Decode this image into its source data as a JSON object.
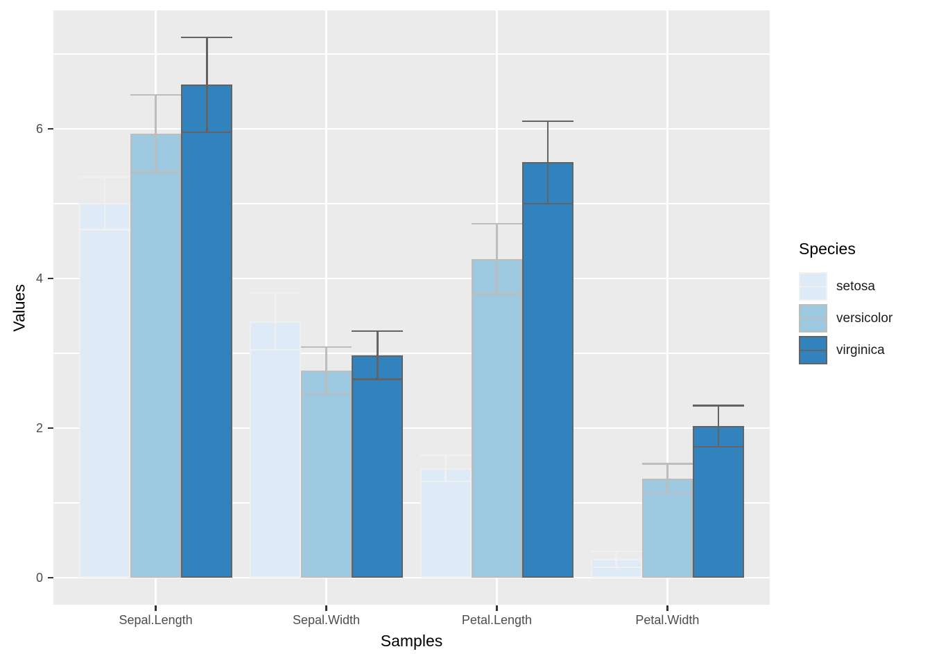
{
  "chart_data": {
    "type": "bar",
    "title": "",
    "xlabel": "Samples",
    "ylabel": "Values",
    "categories": [
      "Sepal.Length",
      "Sepal.Width",
      "Petal.Length",
      "Petal.Width"
    ],
    "series": [
      {
        "name": "setosa",
        "means": [
          5.006,
          3.428,
          1.462,
          0.246
        ],
        "sd": [
          0.352,
          0.379,
          0.174,
          0.105
        ],
        "fill": "#DEEBF7",
        "stroke": "#F0F0F0"
      },
      {
        "name": "versicolor",
        "means": [
          5.936,
          2.77,
          4.26,
          1.326
        ],
        "sd": [
          0.516,
          0.314,
          0.47,
          0.198
        ],
        "fill": "#9ECAE1",
        "stroke": "#BDBDBD"
      },
      {
        "name": "virginica",
        "means": [
          6.588,
          2.974,
          5.552,
          2.026
        ],
        "sd": [
          0.636,
          0.322,
          0.552,
          0.275
        ],
        "fill": "#3182BD",
        "stroke": "#636363"
      }
    ],
    "error_bars": "mean ± sd",
    "y_ticks": [
      "0",
      "2",
      "4",
      "6"
    ],
    "y_tick_values": [
      0,
      2,
      4,
      6
    ],
    "y_minor_values": [
      1,
      3,
      5,
      7
    ],
    "ylim": [
      0,
      7.6
    ],
    "grid": true,
    "legend": {
      "title": "Species",
      "position": "right"
    },
    "colors": {
      "panel_bg": "#EBEBEB",
      "grid": "#FFFFFF",
      "tick_label": "#4D4D4D",
      "tick_mark": "#333333",
      "axis_title": "#000000"
    }
  }
}
